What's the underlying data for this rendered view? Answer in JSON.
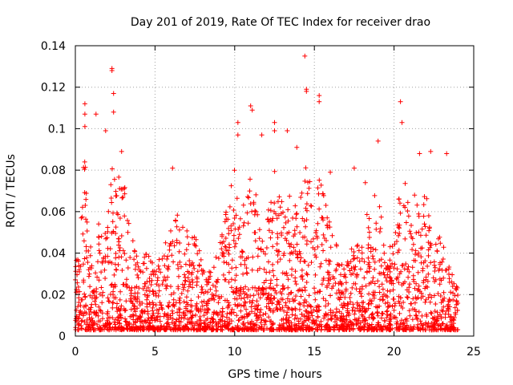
{
  "title": "Day 201 of 2019, Rate Of TEC Index for receiver drao",
  "chart_data": {
    "type": "scatter",
    "title": "Day 201 of 2019, Rate Of TEC Index for receiver drao",
    "xlabel": "GPS time / hours",
    "ylabel": "ROTI / TECUs",
    "xlim": [
      0,
      25
    ],
    "ylim": [
      0,
      0.14
    ],
    "xticks": [
      "0",
      "5",
      "10",
      "15",
      "20",
      "25"
    ],
    "yticks": [
      "0",
      "0.02",
      "0.04",
      "0.06",
      "0.08",
      "0.1",
      "0.12",
      "0.14"
    ],
    "grid": true,
    "marker": "plus",
    "color": "#ff0000",
    "activity_profile_note_free": true,
    "activity_profile": [
      [
        0.0,
        0.03
      ],
      [
        0.3,
        0.05
      ],
      [
        0.6,
        0.09
      ],
      [
        0.9,
        0.05
      ],
      [
        1.2,
        0.02
      ],
      [
        1.5,
        0.06
      ],
      [
        1.8,
        0.05
      ],
      [
        2.1,
        0.06
      ],
      [
        2.4,
        0.09
      ],
      [
        2.8,
        0.07
      ],
      [
        3.1,
        0.07
      ],
      [
        3.5,
        0.05
      ],
      [
        4.0,
        0.03
      ],
      [
        4.5,
        0.04
      ],
      [
        5.0,
        0.03
      ],
      [
        5.5,
        0.04
      ],
      [
        6.0,
        0.05
      ],
      [
        6.5,
        0.06
      ],
      [
        7.0,
        0.05
      ],
      [
        7.5,
        0.05
      ],
      [
        8.0,
        0.03
      ],
      [
        8.5,
        0.03
      ],
      [
        9.0,
        0.04
      ],
      [
        9.5,
        0.06
      ],
      [
        10.0,
        0.08
      ],
      [
        10.5,
        0.06
      ],
      [
        11.0,
        0.08
      ],
      [
        11.5,
        0.06
      ],
      [
        12.0,
        0.06
      ],
      [
        12.5,
        0.08
      ],
      [
        13.0,
        0.06
      ],
      [
        13.5,
        0.07
      ],
      [
        14.0,
        0.06
      ],
      [
        14.5,
        0.08
      ],
      [
        15.0,
        0.06
      ],
      [
        15.5,
        0.08
      ],
      [
        16.0,
        0.05
      ],
      [
        16.5,
        0.04
      ],
      [
        17.0,
        0.03
      ],
      [
        17.5,
        0.05
      ],
      [
        18.0,
        0.05
      ],
      [
        18.5,
        0.06
      ],
      [
        19.0,
        0.07
      ],
      [
        19.5,
        0.05
      ],
      [
        20.0,
        0.04
      ],
      [
        20.5,
        0.08
      ],
      [
        21.0,
        0.06
      ],
      [
        21.5,
        0.07
      ],
      [
        22.0,
        0.07
      ],
      [
        22.5,
        0.04
      ],
      [
        23.0,
        0.05
      ],
      [
        23.5,
        0.03
      ],
      [
        24.0,
        0.02
      ]
    ],
    "outliers": [
      [
        0.6,
        0.112
      ],
      [
        0.6,
        0.107
      ],
      [
        0.6,
        0.101
      ],
      [
        1.3,
        0.107
      ],
      [
        2.3,
        0.129
      ],
      [
        2.3,
        0.128
      ],
      [
        2.4,
        0.117
      ],
      [
        2.4,
        0.108
      ],
      [
        1.9,
        0.099
      ],
      [
        2.9,
        0.089
      ],
      [
        6.1,
        0.081
      ],
      [
        10.2,
        0.103
      ],
      [
        10.2,
        0.097
      ],
      [
        11.0,
        0.111
      ],
      [
        11.1,
        0.109
      ],
      [
        12.5,
        0.103
      ],
      [
        12.5,
        0.099
      ],
      [
        13.3,
        0.099
      ],
      [
        14.4,
        0.135
      ],
      [
        14.5,
        0.119
      ],
      [
        14.5,
        0.118
      ],
      [
        15.3,
        0.116
      ],
      [
        15.3,
        0.113
      ],
      [
        20.4,
        0.113
      ],
      [
        20.5,
        0.103
      ],
      [
        21.6,
        0.088
      ],
      [
        22.3,
        0.089
      ],
      [
        23.3,
        0.088
      ],
      [
        19.0,
        0.094
      ],
      [
        13.9,
        0.091
      ],
      [
        11.7,
        0.097
      ],
      [
        16.0,
        0.079
      ],
      [
        17.5,
        0.081
      ],
      [
        18.2,
        0.074
      ]
    ]
  }
}
